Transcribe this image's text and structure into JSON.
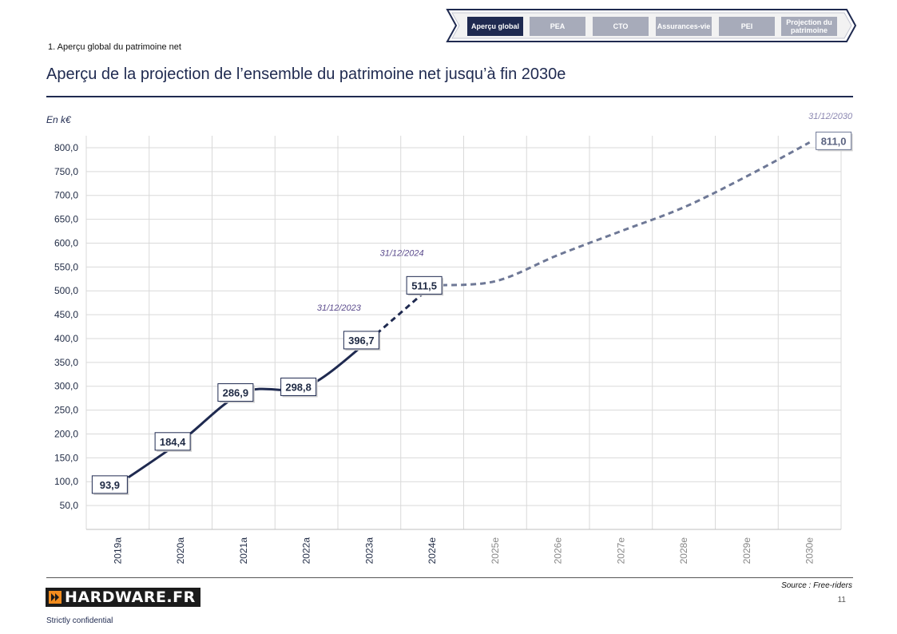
{
  "nav": {
    "tabs": [
      {
        "label": "Aperçu global",
        "active": true
      },
      {
        "label": "PEA",
        "active": false
      },
      {
        "label": "CTO",
        "active": false
      },
      {
        "label": "Assurances-vie",
        "active": false
      },
      {
        "label": "PEI",
        "active": false
      },
      {
        "label": "Projection du patrimoine",
        "active": false
      }
    ]
  },
  "breadcrumb": "1. Aperçu global du patrimoine net",
  "title": "Aperçu de la projection de l’ensemble du patrimoine net jusqu’à fin 2030e",
  "unit_label": "En k€",
  "chart_data": {
    "type": "line",
    "categories": [
      "2019a",
      "2020a",
      "2021a",
      "2022a",
      "2023a",
      "2024e",
      "2025e",
      "2026e",
      "2027e",
      "2028e",
      "2029e",
      "2030e"
    ],
    "actual": {
      "from": 0,
      "to": 5,
      "values": [
        93.9,
        184.4,
        286.9,
        298.8,
        396.7,
        511.5
      ]
    },
    "projected_values": [
      511.5,
      520.0,
      575.0,
      625.0,
      675.0,
      740.0,
      811.0
    ],
    "data_labels": [
      {
        "index": 0,
        "text": "93,9"
      },
      {
        "index": 1,
        "text": "184,4"
      },
      {
        "index": 2,
        "text": "286,9"
      },
      {
        "index": 3,
        "text": "298,8"
      },
      {
        "index": 4,
        "text": "396,7"
      },
      {
        "index": 5,
        "text": "511,5"
      },
      {
        "index": 11,
        "text": "811,0"
      }
    ],
    "date_annotations": [
      {
        "index": 4,
        "text": "31/12/2023"
      },
      {
        "index": 5,
        "text": "31/12/2024"
      },
      {
        "index": 11,
        "text": "31/12/2030"
      }
    ],
    "y_ticks": [
      "50,0",
      "100,0",
      "150,0",
      "200,0",
      "250,0",
      "300,0",
      "350,0",
      "400,0",
      "450,0",
      "500,0",
      "550,0",
      "600,0",
      "650,0",
      "700,0",
      "750,0",
      "800,0"
    ],
    "ylim": [
      0,
      825
    ],
    "grid": true,
    "colors": {
      "actual": "#1f2a50",
      "projected": "#6e7896",
      "annotation": "#5a4a8c",
      "grid": "#d9d9d9"
    }
  },
  "footer": {
    "source": "Source : Free-riders",
    "page_number": "11",
    "logo_text": "HARDWARE.FR",
    "confidential": "Strictly confidential"
  }
}
